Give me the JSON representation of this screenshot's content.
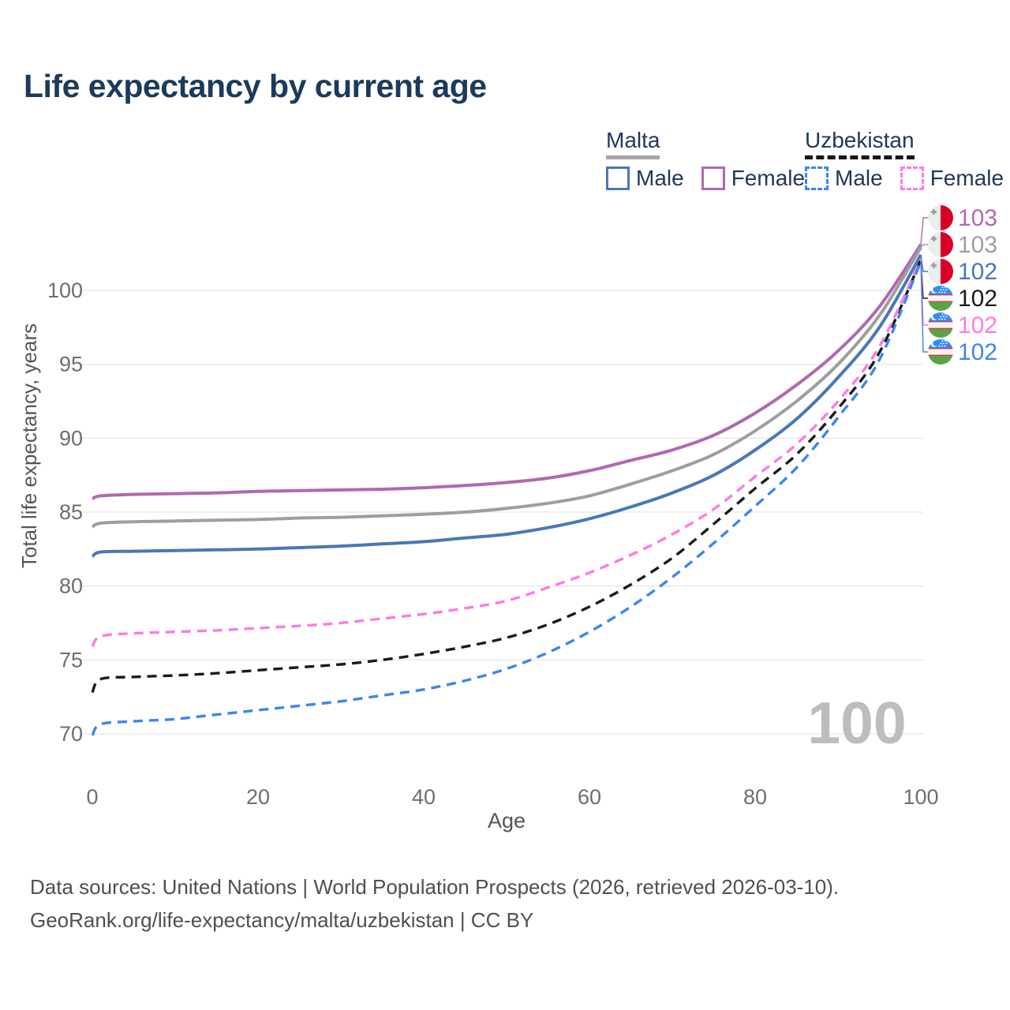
{
  "title": "Life expectancy by current age",
  "legend": {
    "groups": [
      {
        "label": "Malta",
        "line_style": "solid",
        "underline_color": "#a6a6a6",
        "items": [
          {
            "label": "Male",
            "color": "#4878b8",
            "dash": false
          },
          {
            "label": "Female",
            "color": "#b069ae",
            "dash": false
          }
        ]
      },
      {
        "label": "Uzbekistan",
        "line_style": "dashed",
        "underline_color": "#161616",
        "items": [
          {
            "label": "Male",
            "color": "#3d85f0",
            "dash": true
          },
          {
            "label": "Female",
            "color": "#ff7ade",
            "dash": true
          }
        ]
      }
    ]
  },
  "chart_data": {
    "type": "line",
    "title": "Life expectancy by current age",
    "xlabel": "Age",
    "ylabel": "Total life expectancy, years",
    "xlim": [
      0,
      100
    ],
    "ylim": [
      68,
      104
    ],
    "x_ticks": [
      0,
      20,
      40,
      60,
      80,
      100
    ],
    "y_ticks": [
      70,
      75,
      80,
      85,
      90,
      95,
      100
    ],
    "grid": "horizontal",
    "age_watermark": "100",
    "x": [
      0,
      1,
      5,
      10,
      15,
      20,
      25,
      30,
      35,
      40,
      45,
      50,
      55,
      60,
      65,
      70,
      75,
      80,
      85,
      90,
      95,
      100
    ],
    "series": [
      {
        "name": "Malta Female",
        "country": "malta",
        "color": "#b069ae",
        "dash": false,
        "end_label": "103",
        "values": [
          85.9,
          86.1,
          86.2,
          86.25,
          86.3,
          86.4,
          86.45,
          86.5,
          86.55,
          86.65,
          86.8,
          87.0,
          87.3,
          87.8,
          88.5,
          89.2,
          90.2,
          91.7,
          93.6,
          95.9,
          98.9,
          103.1
        ]
      },
      {
        "name": "Malta Both sexes",
        "country": "malta",
        "color": "#9e9e9e",
        "dash": false,
        "end_label": "103",
        "values": [
          84.0,
          84.25,
          84.35,
          84.4,
          84.45,
          84.5,
          84.6,
          84.65,
          84.75,
          84.85,
          85.0,
          85.25,
          85.6,
          86.1,
          86.9,
          87.8,
          88.9,
          90.5,
          92.5,
          95.0,
          98.3,
          102.9
        ]
      },
      {
        "name": "Malta Male",
        "country": "malta",
        "color": "#4878b8",
        "dash": false,
        "end_label": "102",
        "values": [
          82.0,
          82.3,
          82.35,
          82.4,
          82.45,
          82.5,
          82.6,
          82.7,
          82.85,
          83.0,
          83.25,
          83.5,
          83.95,
          84.55,
          85.35,
          86.3,
          87.5,
          89.2,
          91.3,
          94.1,
          97.5,
          102.4
        ]
      },
      {
        "name": "Uzbekistan Both sexes",
        "country": "uzbekistan",
        "color": "#1a1a1a",
        "dash": true,
        "end_label": "102",
        "values": [
          72.8,
          73.7,
          73.85,
          73.95,
          74.1,
          74.3,
          74.5,
          74.7,
          75.0,
          75.4,
          75.9,
          76.5,
          77.4,
          78.6,
          80.1,
          81.9,
          84.2,
          86.6,
          88.9,
          92.0,
          95.8,
          102.05
        ]
      },
      {
        "name": "Uzbekistan Female",
        "country": "uzbekistan",
        "color": "#ff7ade",
        "dash": true,
        "end_label": "102",
        "values": [
          75.9,
          76.6,
          76.8,
          76.9,
          77.0,
          77.15,
          77.3,
          77.5,
          77.8,
          78.1,
          78.5,
          79.0,
          79.9,
          80.9,
          82.1,
          83.5,
          85.2,
          87.4,
          89.6,
          92.5,
          96.2,
          102.1
        ]
      },
      {
        "name": "Uzbekistan Male",
        "country": "uzbekistan",
        "color": "#3d85f0",
        "dash": true,
        "end_label": "102",
        "values": [
          69.9,
          70.65,
          70.85,
          71.0,
          71.3,
          71.6,
          71.9,
          72.2,
          72.6,
          73.0,
          73.6,
          74.4,
          75.5,
          76.9,
          78.6,
          80.6,
          82.9,
          85.4,
          88.0,
          91.4,
          95.3,
          101.95
        ]
      }
    ]
  },
  "footer": {
    "line1": "Data sources: United Nations | World Population Prospects (2026, retrieved 2026-03-10).",
    "line2": "GeoRank.org/life-expectancy/malta/uzbekistan | CC BY"
  }
}
